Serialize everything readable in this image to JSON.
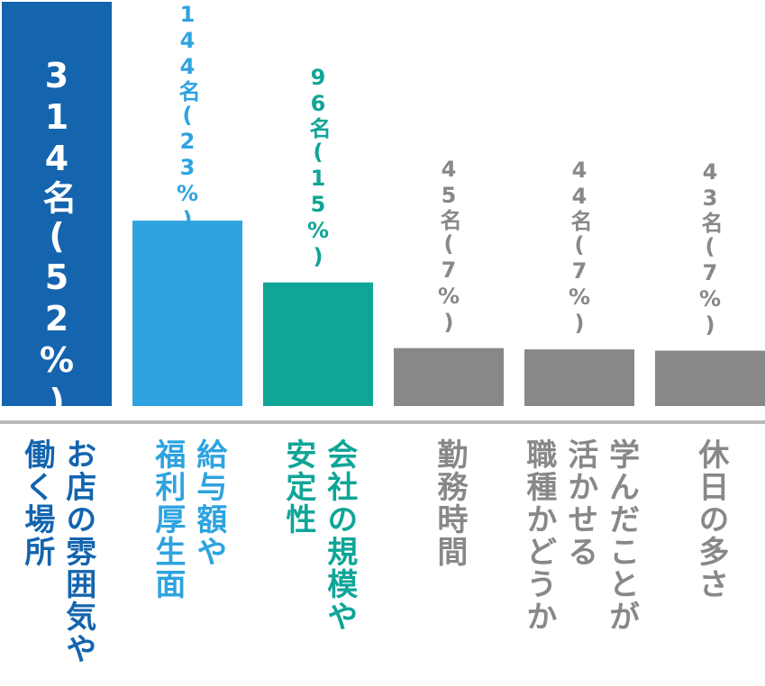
{
  "chart_data": {
    "type": "bar",
    "categories": [
      "お店の雰囲気や\n働く場所",
      "給与額や\n福利厚生面",
      "会社の規模や\n安定性",
      "勤務時間",
      "学んだことが\n活かせる\n職種かどうか",
      "休日の多さ"
    ],
    "values": [
      314,
      144,
      96,
      45,
      44,
      43
    ],
    "value_labels": [
      "314名(52%)",
      "144名(23%)",
      "96名(15%)",
      "45名(7%)",
      "44名(7%)",
      "43名(7%)"
    ],
    "colors": [
      "#1464ae",
      "#2ea3e0",
      "#0fa597",
      "#888888",
      "#888888",
      "#888888"
    ],
    "label_colors": [
      "#1464ae",
      "#2ea3e0",
      "#0fa597",
      "#888888",
      "#888888",
      "#888888"
    ],
    "baseline_color": "#bbbbbb",
    "ylim": [
      0,
      320
    ],
    "grid": false,
    "legend": "none"
  }
}
